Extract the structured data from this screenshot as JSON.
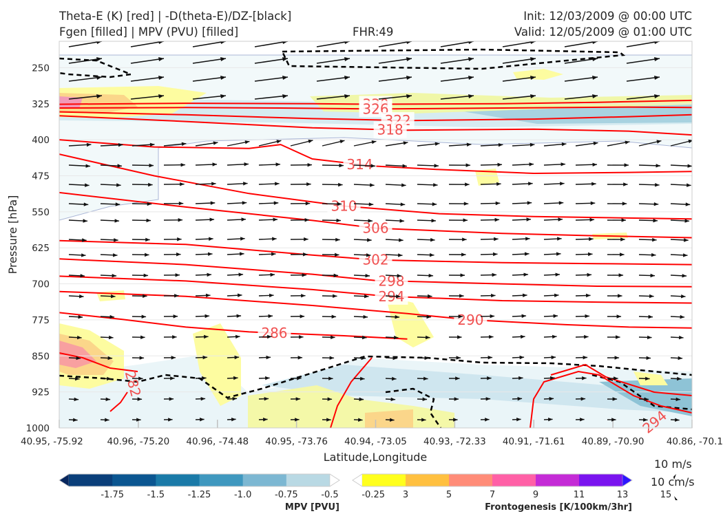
{
  "header": {
    "title_left_1": "Theta-E (K) [red] | -D(theta-E)/DZ-[black]",
    "title_left_2": "Fgen [filled] | MPV (PVU) [filled]",
    "fhr": "FHR:49",
    "init": "Init: 12/03/2009 @ 00:00 UTC",
    "valid": "Valid: 12/05/2009 @ 01:00 UTC"
  },
  "chart_data": {
    "type": "cross-section",
    "xlabel": "Latitude,Longitude",
    "ylabel": "Pressure [hPa]",
    "x_ticks": [
      "40.95, -75.92",
      "40.96, -75.20",
      "40.96, -74.48",
      "40.95, -73.76",
      "40.94, -73.05",
      "40.93, -72.33",
      "40.91, -71.61",
      "40.89, -70.90",
      "40.86, -70.1"
    ],
    "y_ticks": [
      250,
      325,
      400,
      475,
      550,
      625,
      700,
      775,
      850,
      925,
      1000
    ],
    "ylim": [
      1000,
      195
    ],
    "xlim": [
      0,
      1
    ],
    "grid": true,
    "theta_e_contours": [
      {
        "value": 330,
        "label": "330",
        "points": [
          [
            0,
            326
          ],
          [
            0.2,
            324
          ],
          [
            0.4,
            325
          ],
          [
            0.5,
            326
          ],
          [
            0.7,
            325
          ],
          [
            0.85,
            322
          ],
          [
            1,
            318
          ]
        ]
      },
      {
        "value": 326,
        "label": "326",
        "points": [
          [
            0,
            334
          ],
          [
            0.2,
            333
          ],
          [
            0.35,
            334
          ],
          [
            0.5,
            336
          ],
          [
            0.7,
            334
          ],
          [
            0.9,
            332
          ],
          [
            1,
            333
          ]
        ]
      },
      {
        "value": 322,
        "label": "322",
        "points": [
          [
            0,
            342
          ],
          [
            0.2,
            348
          ],
          [
            0.4,
            356
          ],
          [
            0.55,
            360
          ],
          [
            0.75,
            357
          ],
          [
            0.9,
            352
          ],
          [
            1,
            348
          ]
        ]
      },
      {
        "value": 318,
        "label": "318",
        "points": [
          [
            0,
            350
          ],
          [
            0.2,
            362
          ],
          [
            0.4,
            375
          ],
          [
            0.55,
            380
          ],
          [
            0.75,
            378
          ],
          [
            0.9,
            382
          ],
          [
            1,
            390
          ]
        ]
      },
      {
        "value": 314,
        "label": "314",
        "points": [
          [
            0,
            400
          ],
          [
            0.15,
            415
          ],
          [
            0.3,
            418
          ],
          [
            0.35,
            410
          ],
          [
            0.4,
            440
          ],
          [
            0.5,
            455
          ],
          [
            0.6,
            462
          ],
          [
            0.75,
            470
          ],
          [
            0.9,
            468
          ],
          [
            1,
            466
          ]
        ]
      },
      {
        "value": 310,
        "label": "310",
        "points": [
          [
            0,
            430
          ],
          [
            0.15,
            475
          ],
          [
            0.3,
            512
          ],
          [
            0.45,
            538
          ],
          [
            0.6,
            554
          ],
          [
            0.75,
            560
          ],
          [
            0.9,
            563
          ],
          [
            1,
            565
          ]
        ]
      },
      {
        "value": 306,
        "label": "306",
        "points": [
          [
            0,
            510
          ],
          [
            0.2,
            540
          ],
          [
            0.4,
            568
          ],
          [
            0.5,
            584
          ],
          [
            0.7,
            595
          ],
          [
            0.85,
            600
          ],
          [
            1,
            604
          ]
        ]
      },
      {
        "value": 302,
        "label": "302",
        "points": [
          [
            0,
            610
          ],
          [
            0.2,
            618
          ],
          [
            0.4,
            640
          ],
          [
            0.5,
            650
          ],
          [
            0.7,
            656
          ],
          [
            0.85,
            658
          ],
          [
            1,
            660
          ]
        ]
      },
      {
        "value": 298,
        "label": "298",
        "points": [
          [
            0,
            648
          ],
          [
            0.2,
            660
          ],
          [
            0.4,
            680
          ],
          [
            0.5,
            693
          ],
          [
            0.7,
            700
          ],
          [
            0.85,
            705
          ],
          [
            1,
            706
          ]
        ]
      },
      {
        "value": 294,
        "label": "294",
        "points": [
          [
            0,
            684
          ],
          [
            0.2,
            694
          ],
          [
            0.4,
            712
          ],
          [
            0.52,
            726
          ],
          [
            0.7,
            735
          ],
          [
            0.85,
            738
          ],
          [
            1,
            740
          ]
        ]
      },
      {
        "value": 290,
        "label": "290",
        "points": [
          [
            0,
            716
          ],
          [
            0.2,
            726
          ],
          [
            0.4,
            745
          ],
          [
            0.55,
            762
          ],
          [
            0.65,
            775
          ],
          [
            0.8,
            785
          ],
          [
            0.9,
            790
          ],
          [
            1,
            792
          ]
        ]
      },
      {
        "value": 286,
        "label": "286",
        "points": [
          [
            0,
            760
          ],
          [
            0.1,
            774
          ],
          [
            0.2,
            790
          ],
          [
            0.3,
            800
          ],
          [
            0.45,
            808
          ],
          [
            0.55,
            815
          ]
        ]
      }
    ],
    "colorbars": [
      {
        "title": "MPV [PVU]",
        "labels": [
          "-1.75",
          "-1.5",
          "-1.25",
          "-1.0",
          "-0.75",
          "-0.5",
          "-0.25"
        ],
        "colors": [
          "#08275e",
          "#0a3f7a",
          "#0b5691",
          "#1a7aa8",
          "#3f98bf",
          "#7cb7d2",
          "#b9d9e4",
          "#ffffff"
        ]
      },
      {
        "title": "Frontogenesis [K/100km/3hr]",
        "labels": [
          "3",
          "5",
          "7",
          "9",
          "11",
          "13",
          "15"
        ],
        "colors": [
          "#ffffff",
          "#ffff1e",
          "#ffc040",
          "#ff8c78",
          "#ff60a6",
          "#c42bd6",
          "#7a14ef",
          "#2d16ff"
        ]
      }
    ],
    "wind_reference": [
      "10 m/s",
      "10 cm/s"
    ]
  }
}
